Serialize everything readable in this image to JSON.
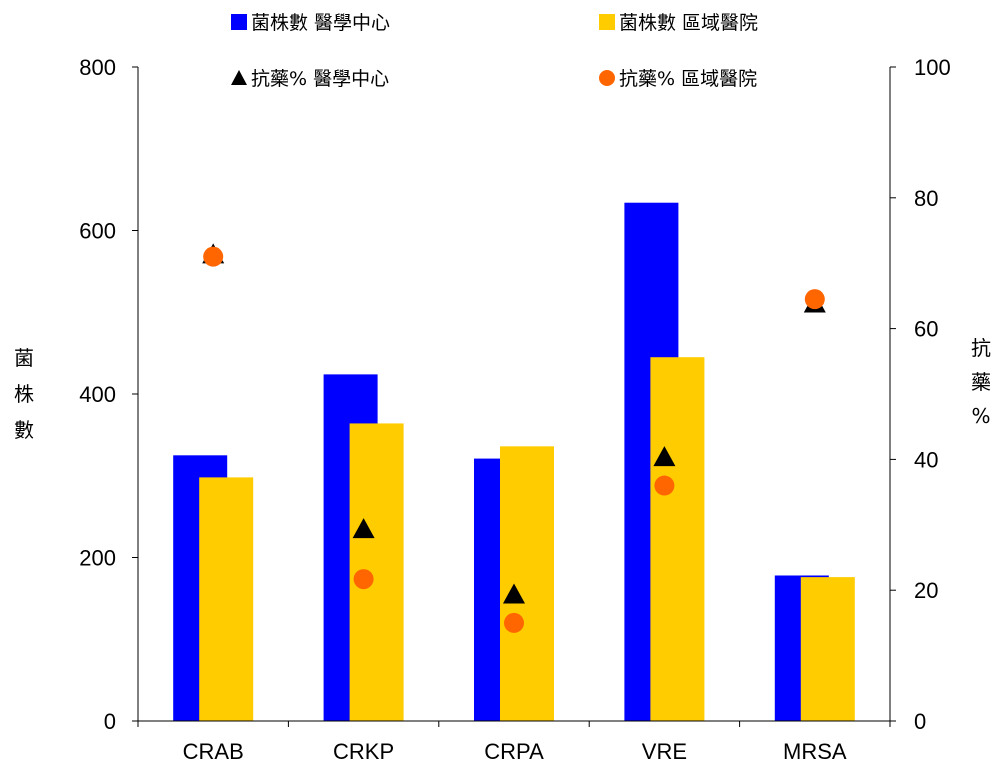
{
  "chart_data": {
    "type": "bar",
    "categories": [
      "CRAB",
      "CRKP",
      "CRPA",
      "VRE",
      "MRSA"
    ],
    "series": [
      {
        "name": "菌株數 醫學中心",
        "kind": "bar",
        "axis": "left",
        "color": "#0000ff",
        "marker": "square",
        "values": [
          325,
          424,
          321,
          634,
          178
        ]
      },
      {
        "name": "菌株數 區域醫院",
        "kind": "bar",
        "axis": "left",
        "color": "#ffcc00",
        "marker": "square",
        "values": [
          298,
          364,
          336,
          445,
          176
        ]
      }
    ],
    "overlay_series": [
      {
        "name": "抗藥% 醫學中心",
        "kind": "scatter",
        "axis": "right",
        "color": "#000000",
        "marker": "triangle",
        "values": [
          71.5,
          29.5,
          19.5,
          40.5,
          64
        ]
      },
      {
        "name": "抗藥% 區域醫院",
        "kind": "scatter",
        "axis": "right",
        "color": "#ff6600",
        "marker": "circle",
        "values": [
          71,
          21.7,
          15,
          36,
          64.5
        ]
      }
    ],
    "ylabel": "菌株數",
    "y2label": "抗藥%",
    "ylim": [
      0,
      800
    ],
    "y2lim": [
      0,
      100
    ],
    "yticks": [
      "0",
      "200",
      "400",
      "600",
      "800"
    ],
    "y2ticks": [
      "0",
      "20",
      "40",
      "60",
      "80",
      "100"
    ],
    "grid": false,
    "legend_position": "top"
  }
}
